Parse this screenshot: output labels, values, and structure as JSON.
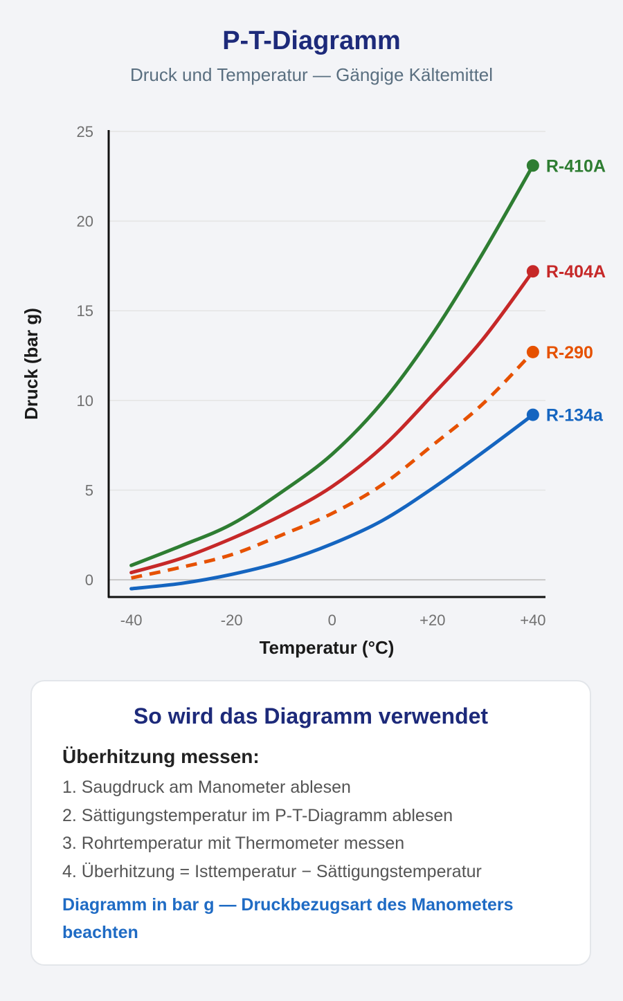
{
  "header": {
    "title": "P-T-Diagramm",
    "subtitle": "Druck und Temperatur — Gängige Kältemittel"
  },
  "chart_data": {
    "type": "line",
    "title": "P-T-Diagramm",
    "subtitle": "Druck und Temperatur — Gängige Kältemittel",
    "xlabel": "Temperatur (°C)",
    "ylabel": "Druck (bar g)",
    "x": [
      -40,
      -30,
      -20,
      -10,
      0,
      10,
      20,
      30,
      40
    ],
    "x_tick_labels": [
      "-40",
      "-20",
      "0",
      "+20",
      "+40"
    ],
    "y_tick_labels": [
      "0",
      "5",
      "10",
      "15",
      "20",
      "25"
    ],
    "xlim": [
      -44.5,
      42.5
    ],
    "ylim": [
      -1,
      25
    ],
    "grid": "horizontal",
    "series": [
      {
        "name": "R-410A",
        "color": "#2e7d32",
        "dashed": false,
        "values": [
          0.8,
          1.9,
          3.1,
          4.9,
          7.0,
          9.9,
          13.7,
          18.2,
          23.1
        ]
      },
      {
        "name": "R-404A",
        "color": "#c62828",
        "dashed": false,
        "values": [
          0.4,
          1.2,
          2.3,
          3.6,
          5.2,
          7.4,
          10.3,
          13.4,
          17.2
        ]
      },
      {
        "name": "R-290",
        "color": "#e65100",
        "dashed": true,
        "values": [
          0.1,
          0.7,
          1.4,
          2.5,
          3.7,
          5.3,
          7.5,
          9.8,
          12.7
        ]
      },
      {
        "name": "R-134a",
        "color": "#1565c0",
        "dashed": false,
        "values": [
          -0.5,
          -0.2,
          0.3,
          1.0,
          2.0,
          3.3,
          5.1,
          7.1,
          9.2
        ]
      }
    ]
  },
  "card": {
    "title": "So wird das Diagramm verwendet",
    "subtitle": "Überhitzung messen:",
    "steps": [
      "1. Saugdruck am Manometer ablesen",
      "2. Sättigungstemperatur im P-T-Diagramm ablesen",
      "3. Rohrtemperatur mit Thermometer messen",
      "4. Überhitzung = Isttemperatur − Sättigungstemperatur"
    ],
    "note": "Diagramm in bar g — Druckbezugsart des Manometers beachten"
  }
}
